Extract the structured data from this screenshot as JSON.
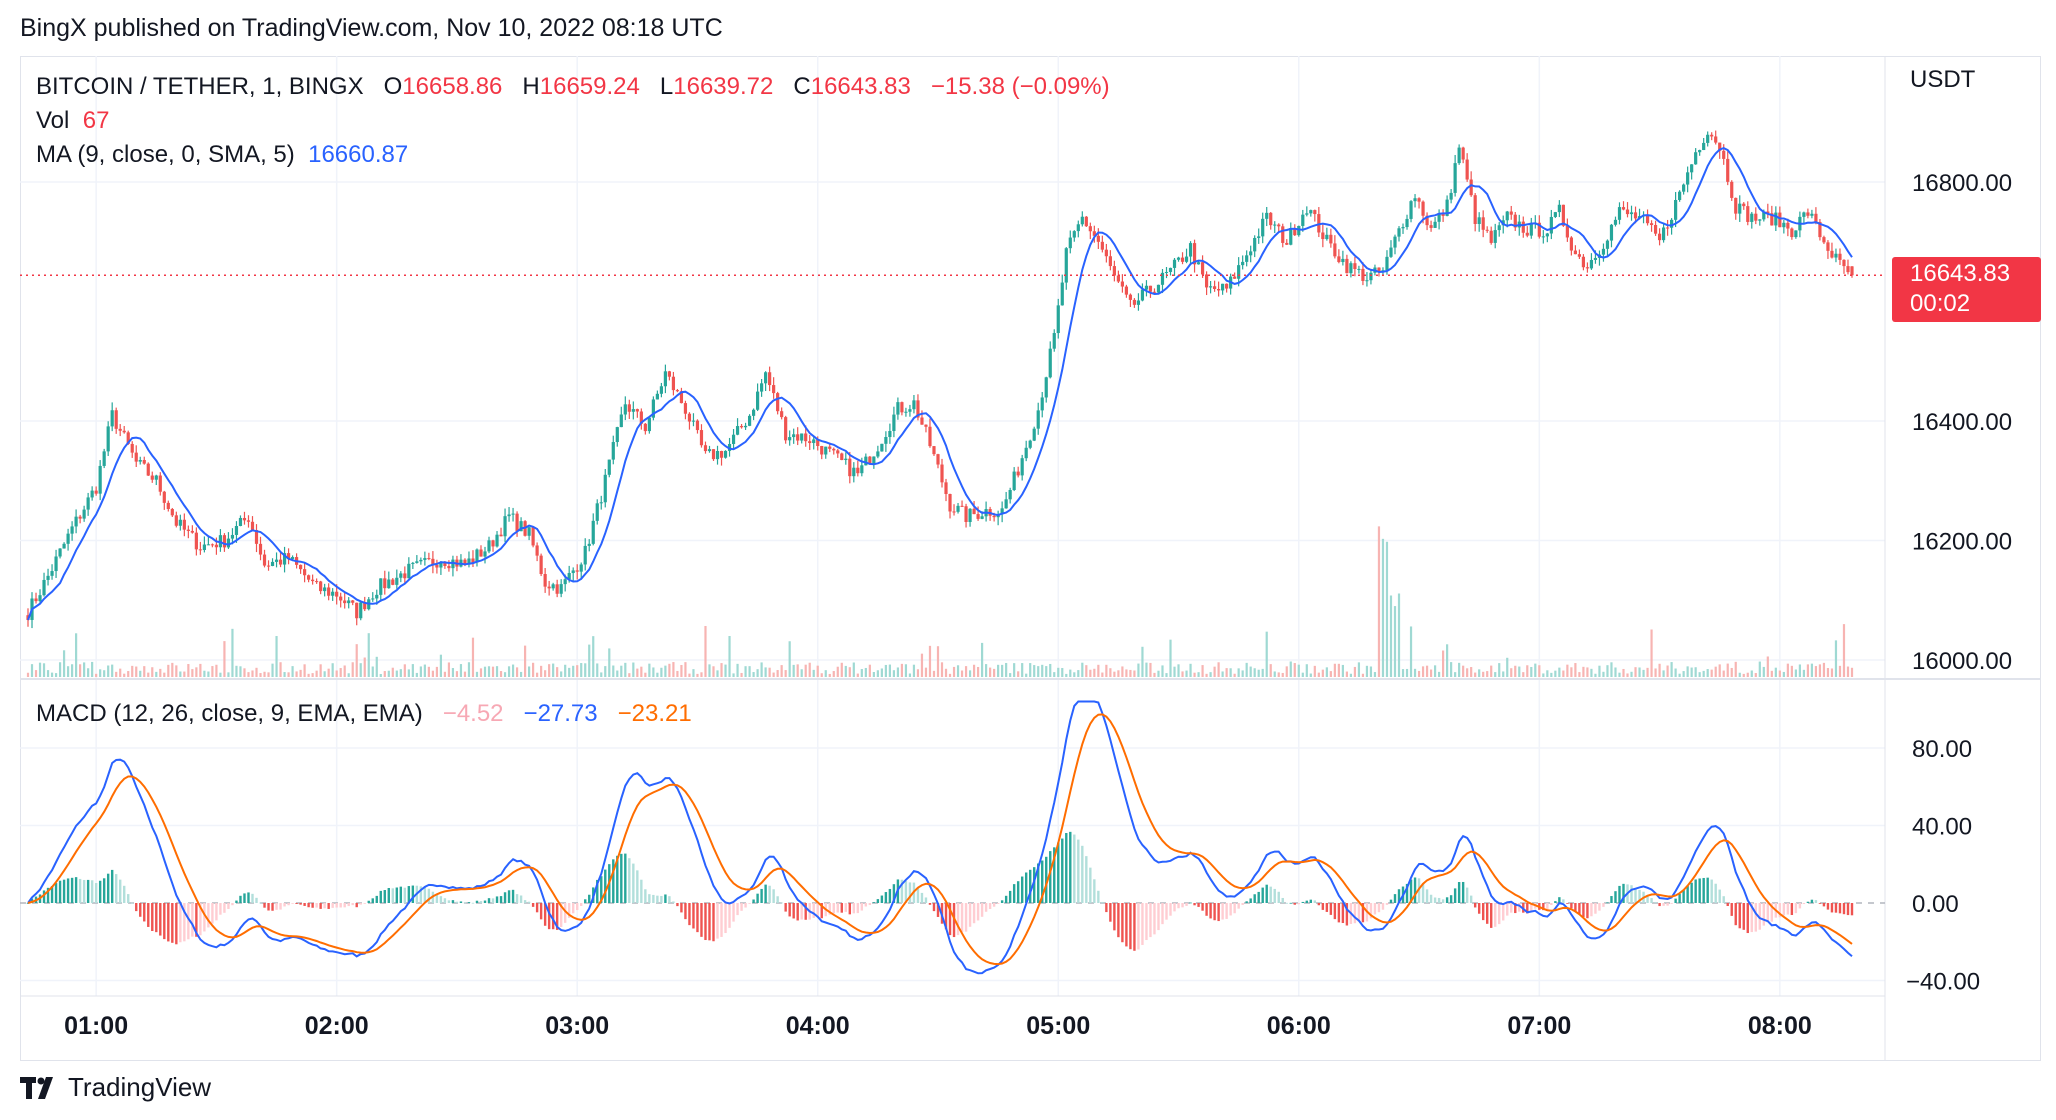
{
  "attribution": "BingX published on TradingView.com, Nov 10, 2022 08:18 UTC",
  "brand": "TradingView",
  "unit": "USDT",
  "legend": {
    "symbol": "BITCOIN / TETHER, 1, BINGX",
    "o_label": "O",
    "o_value": "16658.86",
    "h_label": "H",
    "h_value": "16659.24",
    "l_label": "L",
    "l_value": "16639.72",
    "c_label": "C",
    "c_value": "16643.83",
    "change": "−15.38 (−0.09%)",
    "vol_label": "Vol",
    "vol_value": "67",
    "ma_label": "MA (9, close, 0, SMA, 5)",
    "ma_value": "16660.87"
  },
  "macd_legend": {
    "label": "MACD (12, 26, close, 9, EMA, EMA)",
    "hist": "−4.52",
    "macd": "−27.73",
    "signal": "−23.21"
  },
  "last_price": {
    "price": "16643.83",
    "countdown": "00:02"
  },
  "colors": {
    "up": "#26a69a",
    "down": "#ef5350",
    "ma": "#2962ff",
    "macd": "#2962ff",
    "signal": "#ff6d00",
    "vol_up": "#9fd9d3",
    "vol_down": "#f7b4b2",
    "grid": "#f0f3fa"
  },
  "chart_data": [
    {
      "type": "candlestick",
      "title": "BITCOIN / TETHER, 1, BINGX",
      "x_tick_labels": [
        "01:00",
        "02:00",
        "03:00",
        "04:00",
        "05:00",
        "06:00",
        "07:00",
        "08:00"
      ],
      "x_range": [
        "00:43",
        "08:18"
      ],
      "y_tick_labels": [
        "16800.00",
        "16400.00",
        "16200.00",
        "16000.00"
      ],
      "ylim": [
        15950,
        16950
      ],
      "grid": true,
      "keyframes_close": [
        {
          "t": "00:43",
          "v": 16080
        },
        {
          "t": "00:48",
          "v": 16140
        },
        {
          "t": "00:54",
          "v": 16220
        },
        {
          "t": "01:00",
          "v": 16290
        },
        {
          "t": "01:04",
          "v": 16410
        },
        {
          "t": "01:10",
          "v": 16330
        },
        {
          "t": "01:15",
          "v": 16300
        },
        {
          "t": "01:20",
          "v": 16230
        },
        {
          "t": "01:26",
          "v": 16190
        },
        {
          "t": "01:32",
          "v": 16200
        },
        {
          "t": "01:38",
          "v": 16240
        },
        {
          "t": "01:42",
          "v": 16160
        },
        {
          "t": "01:48",
          "v": 16170
        },
        {
          "t": "01:55",
          "v": 16120
        },
        {
          "t": "02:00",
          "v": 16110
        },
        {
          "t": "02:05",
          "v": 16080
        },
        {
          "t": "02:10",
          "v": 16120
        },
        {
          "t": "02:18",
          "v": 16150
        },
        {
          "t": "02:26",
          "v": 16170
        },
        {
          "t": "02:32",
          "v": 16160
        },
        {
          "t": "02:38",
          "v": 16190
        },
        {
          "t": "02:43",
          "v": 16240
        },
        {
          "t": "02:48",
          "v": 16210
        },
        {
          "t": "02:52",
          "v": 16130
        },
        {
          "t": "02:56",
          "v": 16120
        },
        {
          "t": "03:02",
          "v": 16180
        },
        {
          "t": "03:07",
          "v": 16300
        },
        {
          "t": "03:12",
          "v": 16430
        },
        {
          "t": "03:17",
          "v": 16390
        },
        {
          "t": "03:22",
          "v": 16480
        },
        {
          "t": "03:27",
          "v": 16420
        },
        {
          "t": "03:32",
          "v": 16340
        },
        {
          "t": "03:37",
          "v": 16350
        },
        {
          "t": "03:43",
          "v": 16410
        },
        {
          "t": "03:47",
          "v": 16480
        },
        {
          "t": "03:52",
          "v": 16380
        },
        {
          "t": "03:58",
          "v": 16370
        },
        {
          "t": "04:04",
          "v": 16340
        },
        {
          "t": "04:10",
          "v": 16310
        },
        {
          "t": "04:15",
          "v": 16360
        },
        {
          "t": "04:20",
          "v": 16420
        },
        {
          "t": "04:24",
          "v": 16430
        },
        {
          "t": "04:28",
          "v": 16360
        },
        {
          "t": "04:33",
          "v": 16260
        },
        {
          "t": "04:37",
          "v": 16240
        },
        {
          "t": "04:42",
          "v": 16250
        },
        {
          "t": "04:46",
          "v": 16250
        },
        {
          "t": "04:50",
          "v": 16320
        },
        {
          "t": "04:55",
          "v": 16420
        },
        {
          "t": "04:59",
          "v": 16540
        },
        {
          "t": "05:02",
          "v": 16680
        },
        {
          "t": "05:06",
          "v": 16740
        },
        {
          "t": "05:10",
          "v": 16700
        },
        {
          "t": "05:14",
          "v": 16640
        },
        {
          "t": "05:18",
          "v": 16590
        },
        {
          "t": "05:23",
          "v": 16620
        },
        {
          "t": "05:28",
          "v": 16650
        },
        {
          "t": "05:33",
          "v": 16690
        },
        {
          "t": "05:37",
          "v": 16620
        },
        {
          "t": "05:42",
          "v": 16620
        },
        {
          "t": "05:47",
          "v": 16680
        },
        {
          "t": "05:52",
          "v": 16740
        },
        {
          "t": "05:57",
          "v": 16700
        },
        {
          "t": "06:02",
          "v": 16760
        },
        {
          "t": "06:07",
          "v": 16700
        },
        {
          "t": "06:12",
          "v": 16660
        },
        {
          "t": "06:17",
          "v": 16640
        },
        {
          "t": "06:21",
          "v": 16650
        },
        {
          "t": "06:25",
          "v": 16720
        },
        {
          "t": "06:29",
          "v": 16780
        },
        {
          "t": "06:33",
          "v": 16720
        },
        {
          "t": "06:37",
          "v": 16760
        },
        {
          "t": "06:40",
          "v": 16860
        },
        {
          "t": "06:44",
          "v": 16740
        },
        {
          "t": "06:48",
          "v": 16700
        },
        {
          "t": "06:52",
          "v": 16740
        },
        {
          "t": "06:57",
          "v": 16720
        },
        {
          "t": "07:02",
          "v": 16720
        },
        {
          "t": "07:05",
          "v": 16750
        },
        {
          "t": "07:09",
          "v": 16680
        },
        {
          "t": "07:12",
          "v": 16660
        },
        {
          "t": "07:16",
          "v": 16700
        },
        {
          "t": "07:20",
          "v": 16750
        },
        {
          "t": "07:25",
          "v": 16740
        },
        {
          "t": "07:30",
          "v": 16700
        },
        {
          "t": "07:35",
          "v": 16780
        },
        {
          "t": "07:39",
          "v": 16850
        },
        {
          "t": "07:42",
          "v": 16890
        },
        {
          "t": "07:45",
          "v": 16860
        },
        {
          "t": "07:49",
          "v": 16760
        },
        {
          "t": "07:53",
          "v": 16740
        },
        {
          "t": "07:58",
          "v": 16740
        },
        {
          "t": "08:03",
          "v": 16720
        },
        {
          "t": "08:07",
          "v": 16750
        },
        {
          "t": "08:11",
          "v": 16700
        },
        {
          "t": "08:15",
          "v": 16660
        },
        {
          "t": "08:18",
          "v": 16643.83
        }
      ],
      "last_candle": {
        "open": 16658.86,
        "high": 16659.24,
        "low": 16639.72,
        "close": 16643.83
      },
      "series": [
        {
          "name": "MA (9, close, 0, SMA, 5)",
          "type": "line",
          "last_value": 16660.87
        },
        {
          "name": "Vol",
          "type": "bar",
          "last_value": 67
        }
      ]
    },
    {
      "type": "line",
      "title": "MACD (12, 26, close, 9, EMA, EMA)",
      "y_tick_labels": [
        "80.00",
        "40.00",
        "0.00",
        "−40.00"
      ],
      "ylim": [
        -45,
        105
      ],
      "grid": true,
      "last_values": {
        "histogram": -4.52,
        "macd": -27.73,
        "signal": -23.21
      }
    }
  ]
}
